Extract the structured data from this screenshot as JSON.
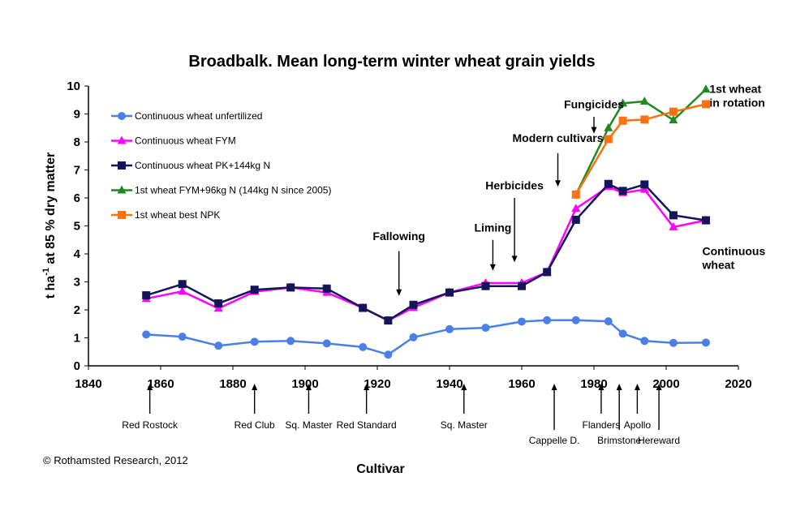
{
  "colors": {
    "unfertilized": "#4a7fe6",
    "fym": "#ff00ff",
    "pk": "#14145a",
    "rotation_fym": "#1f8a1f",
    "rotation_npk": "#ff7010"
  },
  "chart_data": {
    "type": "line",
    "title": "Broadbalk. Mean long-term winter wheat grain yields",
    "xlabel": "Cultivar",
    "ylabel_main": "t ha",
    "ylabel_sup": "-1",
    "ylabel_rest": " at 85 % dry matter",
    "xlim": [
      1840,
      2020
    ],
    "ylim": [
      0,
      10
    ],
    "xticks": [
      "1840",
      "1860",
      "1880",
      "1900",
      "1920",
      "1940",
      "1960",
      "1980",
      "2000",
      "2020"
    ],
    "yticks": [
      "0",
      "1",
      "2",
      "3",
      "4",
      "5",
      "6",
      "7",
      "8",
      "9",
      "10"
    ],
    "grid": false,
    "legend_position": "top-left",
    "series": [
      {
        "name": "Continuous wheat unfertilized",
        "marker": "circle",
        "color_key": "unfertilized",
        "points": [
          [
            1856,
            1.12
          ],
          [
            1866,
            1.04
          ],
          [
            1876,
            0.72
          ],
          [
            1886,
            0.86
          ],
          [
            1896,
            0.89
          ],
          [
            1906,
            0.8
          ],
          [
            1916,
            0.67
          ],
          [
            1923,
            0.4
          ],
          [
            1930,
            1.02
          ],
          [
            1940,
            1.31
          ],
          [
            1950,
            1.36
          ],
          [
            1960,
            1.58
          ],
          [
            1967,
            1.63
          ],
          [
            1975,
            1.63
          ],
          [
            1984,
            1.59
          ],
          [
            1988,
            1.15
          ],
          [
            1994,
            0.89
          ],
          [
            2002,
            0.82
          ],
          [
            2011,
            0.83
          ]
        ]
      },
      {
        "name": "Continuous wheat FYM",
        "marker": "triangle",
        "color_key": "fym",
        "points": [
          [
            1856,
            2.4
          ],
          [
            1866,
            2.66
          ],
          [
            1876,
            2.05
          ],
          [
            1886,
            2.65
          ],
          [
            1896,
            2.8
          ],
          [
            1906,
            2.62
          ],
          [
            1916,
            2.07
          ],
          [
            1923,
            1.62
          ],
          [
            1930,
            2.08
          ],
          [
            1940,
            2.62
          ],
          [
            1950,
            2.96
          ],
          [
            1960,
            2.96
          ],
          [
            1967,
            3.35
          ],
          [
            1975,
            5.62
          ],
          [
            1984,
            6.4
          ],
          [
            1988,
            6.18
          ],
          [
            1994,
            6.3
          ],
          [
            2002,
            4.96
          ],
          [
            2011,
            5.2
          ]
        ]
      },
      {
        "name": "Continuous wheat PK+144kg N",
        "marker": "square",
        "color_key": "pk",
        "points": [
          [
            1856,
            2.52
          ],
          [
            1866,
            2.92
          ],
          [
            1876,
            2.23
          ],
          [
            1886,
            2.72
          ],
          [
            1896,
            2.8
          ],
          [
            1906,
            2.76
          ],
          [
            1916,
            2.07
          ],
          [
            1923,
            1.62
          ],
          [
            1930,
            2.18
          ],
          [
            1940,
            2.62
          ],
          [
            1950,
            2.85
          ],
          [
            1960,
            2.85
          ],
          [
            1967,
            3.35
          ],
          [
            1975,
            5.22
          ],
          [
            1984,
            6.5
          ],
          [
            1988,
            6.25
          ],
          [
            1994,
            6.48
          ],
          [
            2002,
            5.38
          ],
          [
            2011,
            5.2
          ]
        ]
      },
      {
        "name": "1st wheat FYM+96kg N (144kg N since 2005)",
        "marker": "triangle",
        "color_key": "rotation_fym",
        "points": [
          [
            1975,
            6.12
          ],
          [
            1984,
            8.5
          ],
          [
            1988,
            9.38
          ],
          [
            1994,
            9.45
          ],
          [
            2002,
            8.78
          ],
          [
            2011,
            9.88
          ]
        ]
      },
      {
        "name": "1st wheat best NPK",
        "marker": "square",
        "color_key": "rotation_npk",
        "points": [
          [
            1975,
            6.12
          ],
          [
            1984,
            8.1
          ],
          [
            1988,
            8.76
          ],
          [
            1994,
            8.8
          ],
          [
            2002,
            9.08
          ],
          [
            2011,
            9.35
          ]
        ]
      }
    ],
    "annotations": [
      {
        "lines": [
          "Fallowing"
        ],
        "x": 1926,
        "y_text": 4.5,
        "arrow_from": 4.1,
        "arrow_to": 2.5
      },
      {
        "lines": [
          "Liming"
        ],
        "x": 1952,
        "y_text": 4.8,
        "arrow_from": 4.5,
        "arrow_to": 3.4
      },
      {
        "lines": [
          "Herbicides"
        ],
        "x": 1958,
        "y_text": 6.3,
        "arrow_from": 6.0,
        "arrow_to": 3.7
      },
      {
        "lines": [
          "Modern cultivars"
        ],
        "x": 1970,
        "y_text": 8.0,
        "arrow_from": 7.6,
        "arrow_to": 6.4
      },
      {
        "lines": [
          "Fungicides"
        ],
        "x": 1980,
        "y_text": 9.2,
        "arrow_from": 8.9,
        "arrow_to": 8.3
      },
      {
        "lines": [
          "1st wheat",
          "in rotation"
        ],
        "x": 2012,
        "y_text": 9.75,
        "arrow_from": null,
        "arrow_to": null
      },
      {
        "lines": [
          "Continuous",
          "wheat"
        ],
        "x": 2010,
        "y_text": 3.95,
        "arrow_from": null,
        "arrow_to": null
      }
    ],
    "cultivars": [
      {
        "name": "Red Rostock",
        "x": 1857,
        "row": 0
      },
      {
        "name": "Red Club",
        "x": 1886,
        "row": 0
      },
      {
        "name": "Sq. Master",
        "x": 1901,
        "row": 0
      },
      {
        "name": "Red Standard",
        "x": 1917,
        "row": 0
      },
      {
        "name": "Sq. Master",
        "x": 1944,
        "row": 0
      },
      {
        "name": "Cappelle D.",
        "x": 1969,
        "row": 1
      },
      {
        "name": "Flanders",
        "x": 1982,
        "row": 0
      },
      {
        "name": "Brimstone",
        "x": 1987,
        "row": 1
      },
      {
        "name": "Apollo",
        "x": 1992,
        "row": 0
      },
      {
        "name": "Hereward",
        "x": 1998,
        "row": 1
      }
    ]
  },
  "copyright": "© Rothamsted Research, 2012"
}
